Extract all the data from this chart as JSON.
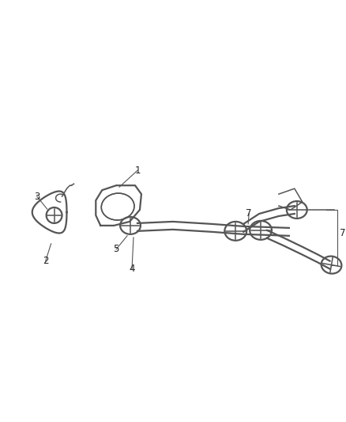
{
  "bg_color": "#ffffff",
  "line_color": "#555555",
  "figsize": [
    4.38,
    5.33
  ],
  "dpi": 100,
  "lw": 1.1,
  "lw_thick": 1.6
}
